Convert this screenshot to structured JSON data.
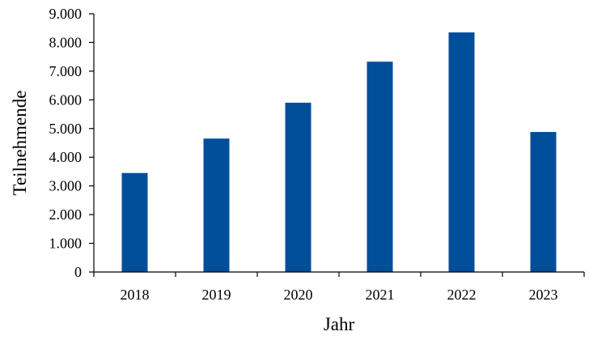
{
  "chart_data": {
    "type": "bar",
    "title": "",
    "xlabel": "Jahr",
    "ylabel": "Teilnehmende",
    "categories": [
      "2018",
      "2019",
      "2020",
      "2021",
      "2022",
      "2023"
    ],
    "values": [
      3450,
      4650,
      5900,
      7330,
      8350,
      4880
    ],
    "ylim": [
      0,
      9000
    ],
    "yticks": [
      0,
      1000,
      2000,
      3000,
      4000,
      5000,
      6000,
      7000,
      8000,
      9000
    ],
    "ytick_labels": [
      "0",
      "1.000",
      "2.000",
      "3.000",
      "4.000",
      "5.000",
      "6.000",
      "7.000",
      "8.000",
      "9.000"
    ],
    "grid": false,
    "legend": "none",
    "bar_color": "#004E9A"
  }
}
